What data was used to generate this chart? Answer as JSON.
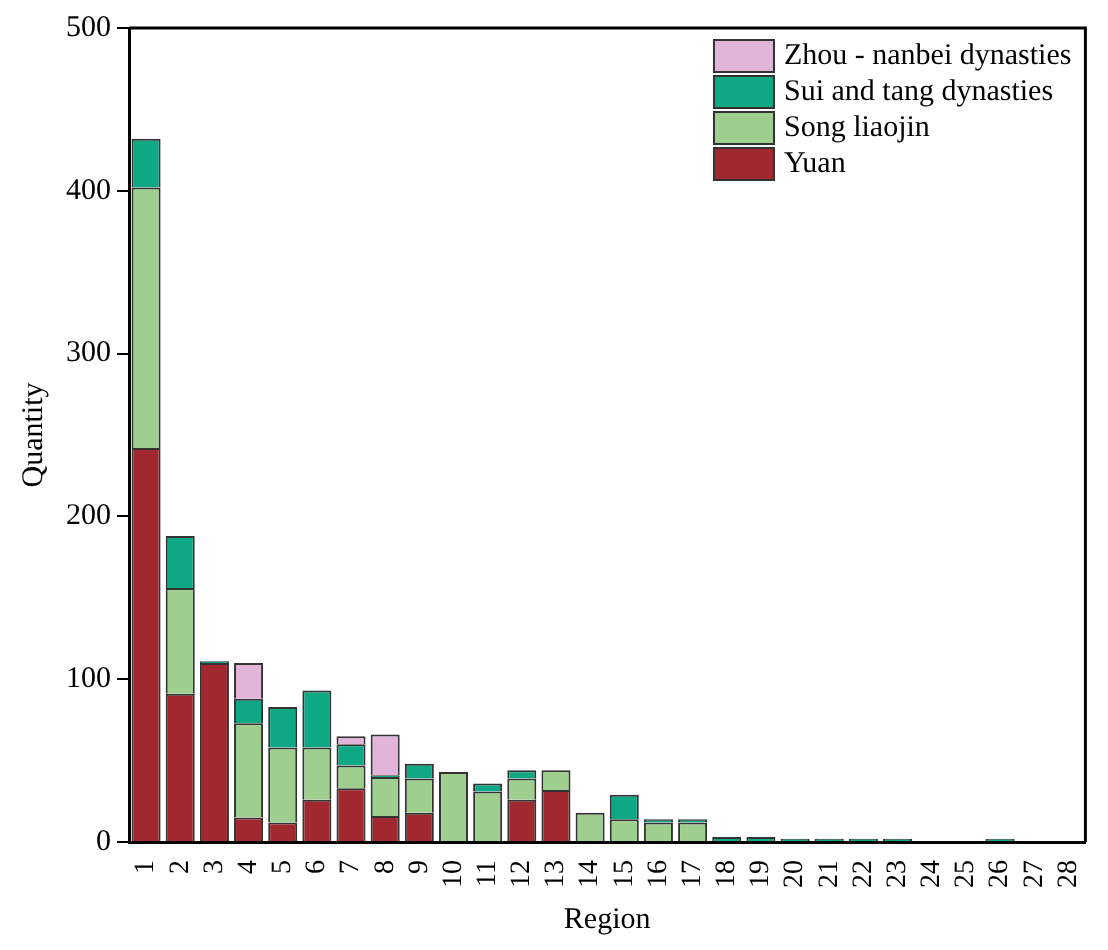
{
  "chart_data": {
    "type": "bar",
    "stacked": true,
    "xlabel": "Region",
    "ylabel": "Quantity",
    "categories": [
      "1",
      "2",
      "3",
      "4",
      "5",
      "6",
      "7",
      "8",
      "9",
      "10",
      "11",
      "12",
      "13",
      "14",
      "15",
      "16",
      "17",
      "18",
      "19",
      "20",
      "21",
      "22",
      "23",
      "24",
      "25",
      "26",
      "27",
      "28"
    ],
    "series": [
      {
        "name": "Yuan",
        "color": "#a0282e",
        "values": [
          242,
          91,
          110,
          15,
          12,
          26,
          33,
          16,
          18,
          0,
          0,
          26,
          32,
          0,
          0,
          0,
          0,
          0,
          0,
          0,
          0,
          0,
          0,
          0,
          0,
          0,
          0,
          0
        ]
      },
      {
        "name": "Song liaojin",
        "color": "#9fcf8f",
        "values": [
          160,
          65,
          0,
          58,
          46,
          32,
          14,
          24,
          21,
          43,
          31,
          13,
          12,
          18,
          14,
          12,
          12,
          0,
          0,
          0,
          0,
          0,
          0,
          0,
          0,
          0,
          0,
          0
        ]
      },
      {
        "name": "Sui and tang dynasties",
        "color": "#0fa884",
        "values": [
          30,
          32,
          1,
          15,
          25,
          35,
          13,
          1,
          9,
          0,
          5,
          5,
          0,
          0,
          15,
          2,
          2,
          3,
          3,
          2,
          2,
          2,
          2,
          0,
          0,
          2,
          0,
          0
        ]
      },
      {
        "name": "Zhou - nanbei dynasties",
        "color": "#e2b4da",
        "values": [
          0,
          0,
          0,
          22,
          0,
          0,
          5,
          25,
          0,
          0,
          0,
          0,
          0,
          0,
          0,
          0,
          0,
          0,
          0,
          0,
          0,
          0,
          0,
          0,
          0,
          0,
          0,
          0
        ]
      }
    ],
    "ylim": [
      0,
      500
    ],
    "yticks": [
      0,
      100,
      200,
      300,
      400,
      500
    ],
    "grid": false,
    "legend": "top right"
  }
}
